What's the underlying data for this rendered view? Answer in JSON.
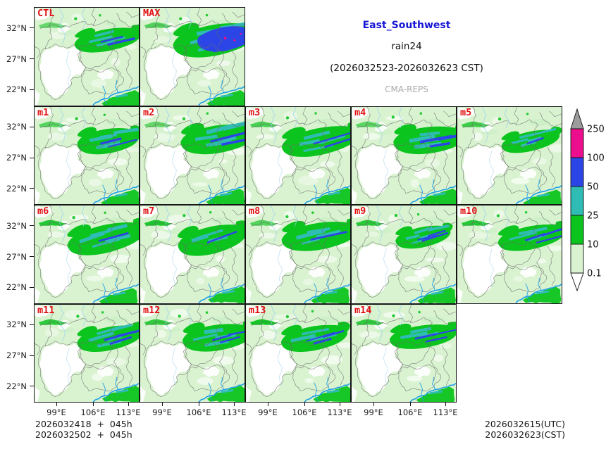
{
  "header": {
    "region_title": "East_Southwest",
    "variable": "rain24",
    "valid_period": "(2026032523-2026032623 CST)",
    "model_name": "CMA-REPS"
  },
  "panels": [
    {
      "label": "CTL",
      "row": 0,
      "col": 0,
      "kind": "ctl"
    },
    {
      "label": "MAX",
      "row": 0,
      "col": 1,
      "kind": "max"
    },
    {
      "label": "m1",
      "row": 1,
      "col": 0,
      "kind": "member"
    },
    {
      "label": "m2",
      "row": 1,
      "col": 1,
      "kind": "member"
    },
    {
      "label": "m3",
      "row": 1,
      "col": 2,
      "kind": "member"
    },
    {
      "label": "m4",
      "row": 1,
      "col": 3,
      "kind": "member"
    },
    {
      "label": "m5",
      "row": 1,
      "col": 4,
      "kind": "member"
    },
    {
      "label": "m6",
      "row": 2,
      "col": 0,
      "kind": "member"
    },
    {
      "label": "m7",
      "row": 2,
      "col": 1,
      "kind": "member"
    },
    {
      "label": "m8",
      "row": 2,
      "col": 2,
      "kind": "member"
    },
    {
      "label": "m9",
      "row": 2,
      "col": 3,
      "kind": "member"
    },
    {
      "label": "m10",
      "row": 2,
      "col": 4,
      "kind": "member"
    },
    {
      "label": "m11",
      "row": 3,
      "col": 0,
      "kind": "member"
    },
    {
      "label": "m12",
      "row": 3,
      "col": 1,
      "kind": "member"
    },
    {
      "label": "m13",
      "row": 3,
      "col": 2,
      "kind": "member"
    },
    {
      "label": "m14",
      "row": 3,
      "col": 3,
      "kind": "member"
    }
  ],
  "axes": {
    "y_tick_labels": [
      "32°N",
      "27°N",
      "22°N"
    ],
    "x_tick_labels": [
      "99°E",
      "106°E",
      "113°E"
    ]
  },
  "colorbar": {
    "tick_labels": [
      "250",
      "100",
      "50",
      "25",
      "10",
      "0.1"
    ],
    "segment_colors_top_to_bottom": [
      "#ec0e8c",
      "#2b45e6",
      "#2fbcb4",
      "#0cc41e",
      "#d9f3d0"
    ],
    "over_arrow_color": "#9c9c9c",
    "under_arrow_color": "#ffffff"
  },
  "footer": {
    "left_lines": [
      "2026032418  +  045h",
      "2026032502  +  045h"
    ],
    "right_lines": [
      "2026032615(UTC)",
      "2026032623(CST)"
    ]
  },
  "style_colors": {
    "panel_label_red": "#e01112",
    "title_blue": "#1515d6",
    "model_gray": "#a8a8a8",
    "rain_light_green": "#d9f3d0",
    "rain_green": "#0cc41e",
    "rain_cyan": "#2fbcb4",
    "rain_blue": "#2b45e6",
    "rain_magenta": "#ec0e8c",
    "boundary_gray": "#6a6a6a",
    "river_blue": "#9bd0f0",
    "coast_blue": "#1f9fe8"
  }
}
